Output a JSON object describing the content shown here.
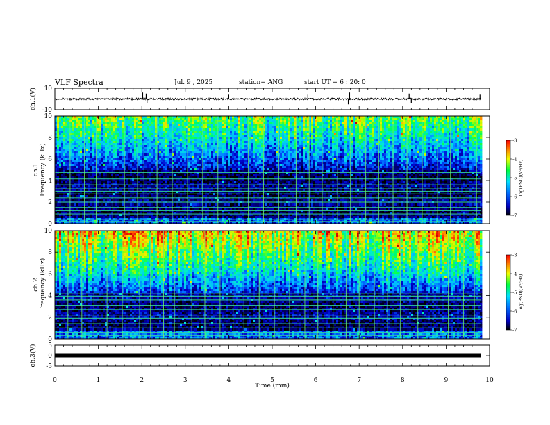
{
  "header": {
    "title": "VLF Spectra",
    "date": "Jul. 9 , 2025",
    "station": "station= ANG",
    "start": "start UT = 6 : 20: 0"
  },
  "chart_data": [
    {
      "type": "line",
      "panel": "ch1-waveform",
      "ylabel": "ch.1(V)",
      "ylim": [
        -10,
        10
      ],
      "y_ticks": [
        "10",
        "-10"
      ],
      "xlim": [
        0,
        10
      ],
      "data_extent_x": [
        0,
        9.8
      ],
      "baseline": 0,
      "spikes": [
        {
          "x": 2.02,
          "y": 6
        },
        {
          "x": 2.1,
          "y": 5
        },
        {
          "x": 2.12,
          "y": -4
        },
        {
          "x": 4.0,
          "y": 4
        },
        {
          "x": 5.82,
          "y": 4
        },
        {
          "x": 6.75,
          "y": -5
        },
        {
          "x": 6.78,
          "y": 6
        },
        {
          "x": 8.15,
          "y": 5
        },
        {
          "x": 8.2,
          "y": -4
        },
        {
          "x": 9.78,
          "y": 4
        }
      ]
    },
    {
      "type": "heatmap",
      "panel": "ch1-spectrogram",
      "ylabel": "ch.1 Frequency (kHz)",
      "ylim": [
        0,
        10
      ],
      "y_ticks": [
        "0",
        "2",
        "4",
        "6",
        "8",
        "10"
      ],
      "xlim": [
        0,
        10
      ],
      "data_extent_x": [
        0,
        9.8
      ],
      "colorbar": {
        "label": "log(PSD)(V²/Hz)",
        "range": [
          -7,
          -3
        ],
        "ticks": [
          "-3",
          "-4",
          "-5",
          "-6",
          "-7"
        ]
      },
      "lines_khz": [
        0.2,
        0.4,
        0.9,
        1.2,
        1.5,
        2.0,
        2.4,
        2.75,
        3.0,
        3.3,
        3.6,
        4.15,
        4.75
      ],
      "vertical_lines_min": [
        0.35,
        0.68,
        0.95,
        1.32,
        1.6,
        1.9,
        2.05,
        2.35,
        2.7,
        3.05,
        3.4,
        3.75,
        4.05,
        4.45,
        4.8,
        5.15,
        5.55,
        5.85,
        6.15,
        6.5,
        6.8,
        7.15,
        7.45,
        7.78,
        8.1,
        8.45,
        8.8,
        9.1,
        9.48,
        9.7
      ]
    },
    {
      "type": "heatmap",
      "panel": "ch2-spectrogram",
      "ylabel": "ch.2 Frequency (kHz)",
      "ylim": [
        0,
        10
      ],
      "y_ticks": [
        "0",
        "2",
        "4",
        "6",
        "8",
        "10"
      ],
      "xlim": [
        0,
        10
      ],
      "data_extent_x": [
        0,
        9.8
      ],
      "colorbar": {
        "label": "log(PSD)(V²/Hz)",
        "range": [
          -7,
          -3
        ],
        "ticks": [
          "-3",
          "-4",
          "-5",
          "-6",
          "-7"
        ]
      },
      "lines_khz": [
        0.3,
        0.6,
        1.0,
        1.4,
        1.9,
        2.2,
        2.7,
        3.1,
        3.6,
        3.95,
        4.15
      ],
      "vertical_lines_min": [
        0.3,
        0.62,
        0.9,
        1.2,
        1.55,
        1.95,
        2.2,
        2.5,
        2.75,
        3.15,
        3.45,
        3.8,
        4.1,
        4.35,
        4.7,
        5.05,
        5.4,
        5.75,
        6.05,
        6.4,
        6.7,
        7.0,
        7.35,
        7.65,
        7.95,
        8.35,
        8.7,
        9.05,
        9.4,
        9.65
      ]
    },
    {
      "type": "line",
      "panel": "ch3-waveform",
      "ylabel": "ch.3(V)",
      "ylim": [
        -5,
        5
      ],
      "y_ticks": [
        "5",
        "0",
        "-5"
      ],
      "xlim": [
        0,
        10
      ],
      "data_extent_x": [
        0,
        9.8
      ],
      "baseline": 0,
      "xlabel": "Time (min)",
      "x_ticks": [
        "0",
        "1",
        "2",
        "3",
        "4",
        "5",
        "6",
        "7",
        "8",
        "9",
        "10"
      ]
    }
  ]
}
